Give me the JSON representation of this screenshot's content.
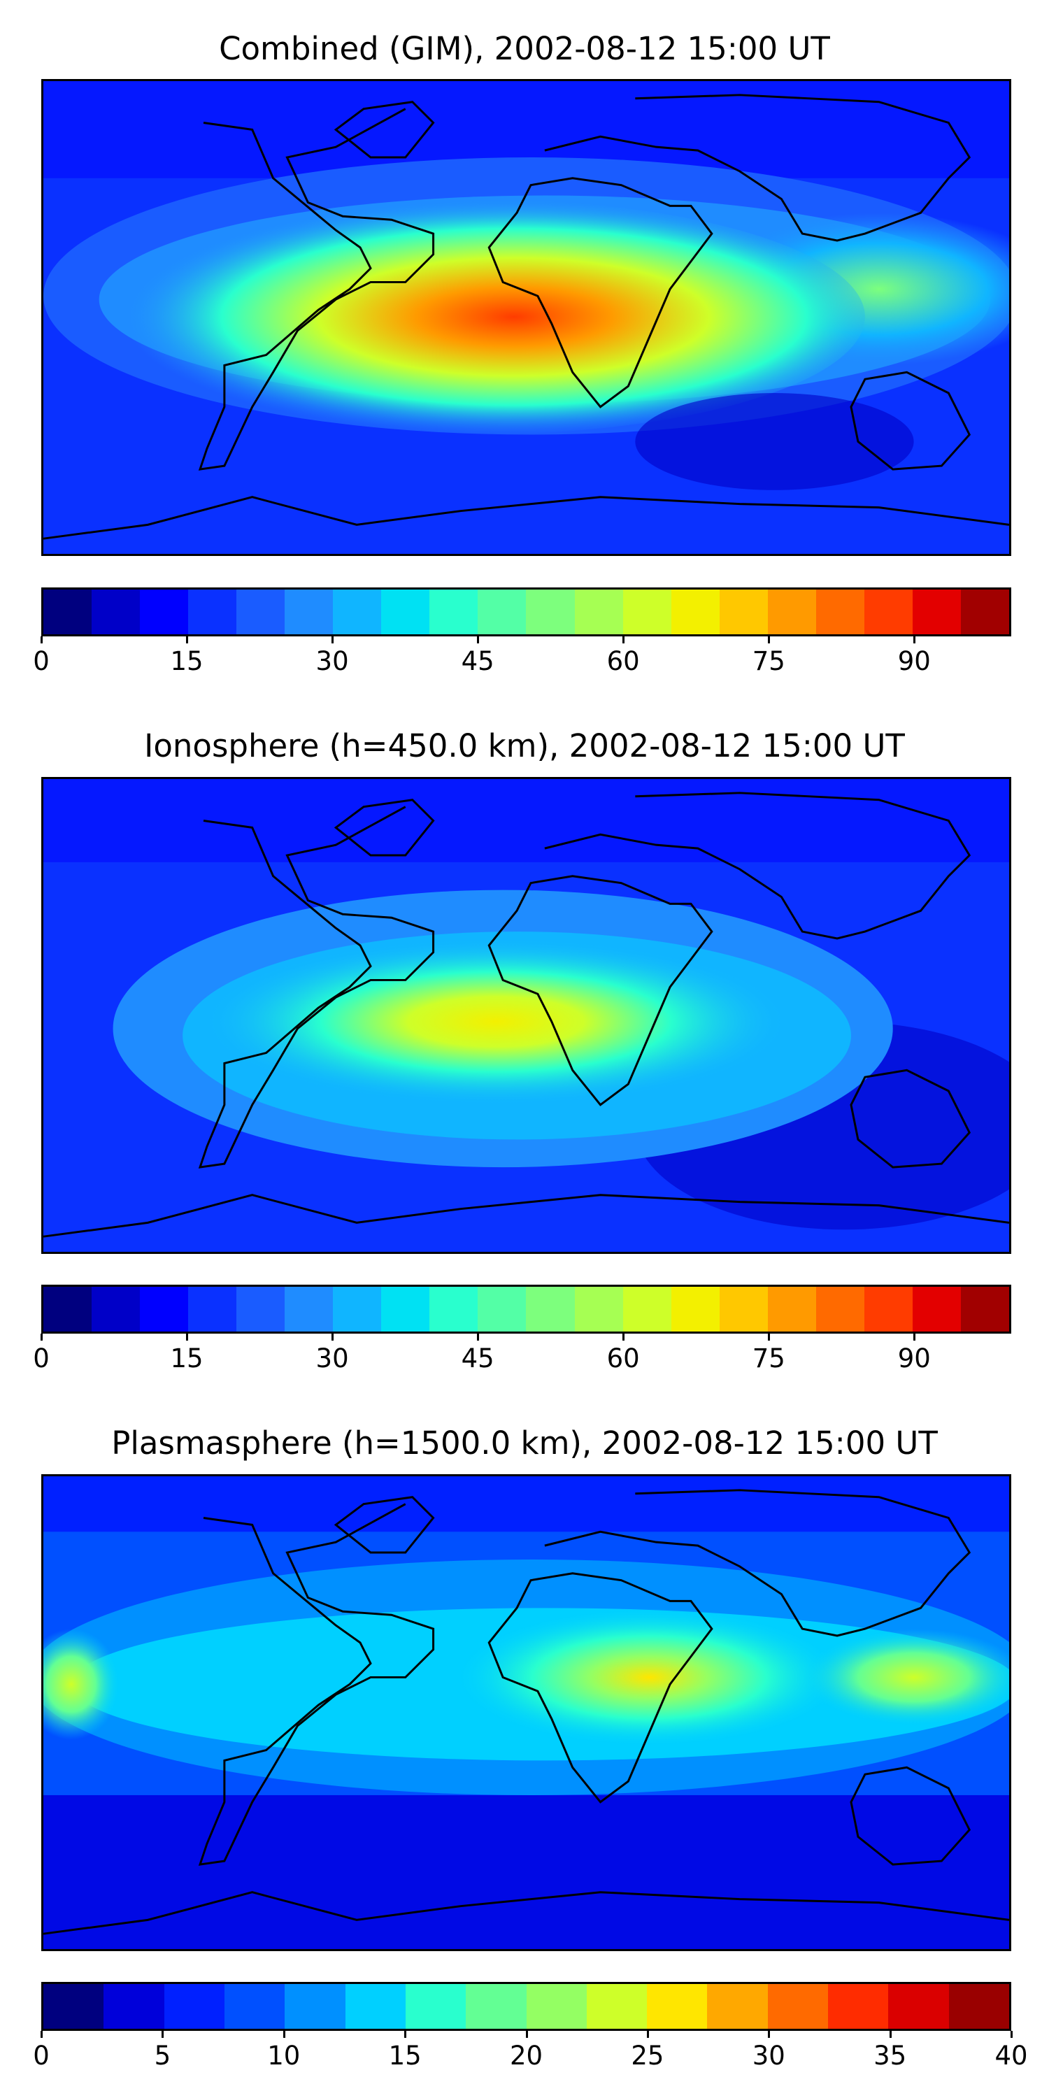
{
  "panels": [
    {
      "title": "Combined (GIM), 2002-08-12 15:00 UT",
      "colorbar_ticks": [
        "0",
        "15",
        "30",
        "45",
        "60",
        "75",
        "90"
      ],
      "colorbar_range": [
        0,
        100
      ],
      "colorbar_levels": 20
    },
    {
      "title": "Ionosphere  (h=450.0 km), 2002-08-12 15:00 UT",
      "colorbar_ticks": [
        "0",
        "15",
        "30",
        "45",
        "60",
        "75",
        "90"
      ],
      "colorbar_range": [
        0,
        100
      ],
      "colorbar_levels": 20
    },
    {
      "title": "Plasmasphere (h=1500.0 km), 2002-08-12 15:00 UT",
      "colorbar_ticks": [
        "0",
        "5",
        "10",
        "15",
        "20",
        "25",
        "30",
        "35",
        "40"
      ],
      "colorbar_range": [
        0,
        40
      ],
      "colorbar_levels": 16
    }
  ],
  "colormap": "jet",
  "colors": {
    "jet20": [
      "#00007f",
      "#0000c8",
      "#0000ff",
      "#0a31ff",
      "#1a5cff",
      "#1f8cff",
      "#10b5ff",
      "#00e1f3",
      "#29ffce",
      "#53ffa6",
      "#7dff7d",
      "#a6ff53",
      "#ceff29",
      "#f3f000",
      "#ffc800",
      "#ff9a00",
      "#ff6a00",
      "#ff3c00",
      "#e30000",
      "#a10000"
    ],
    "jet16": [
      "#00007f",
      "#0000da",
      "#0020ff",
      "#0050ff",
      "#0090ff",
      "#00d0ff",
      "#29ffce",
      "#63ff94",
      "#94ff63",
      "#ceff29",
      "#ffe600",
      "#ffa800",
      "#ff6a00",
      "#ff2c00",
      "#da0000",
      "#9a0000"
    ]
  }
}
